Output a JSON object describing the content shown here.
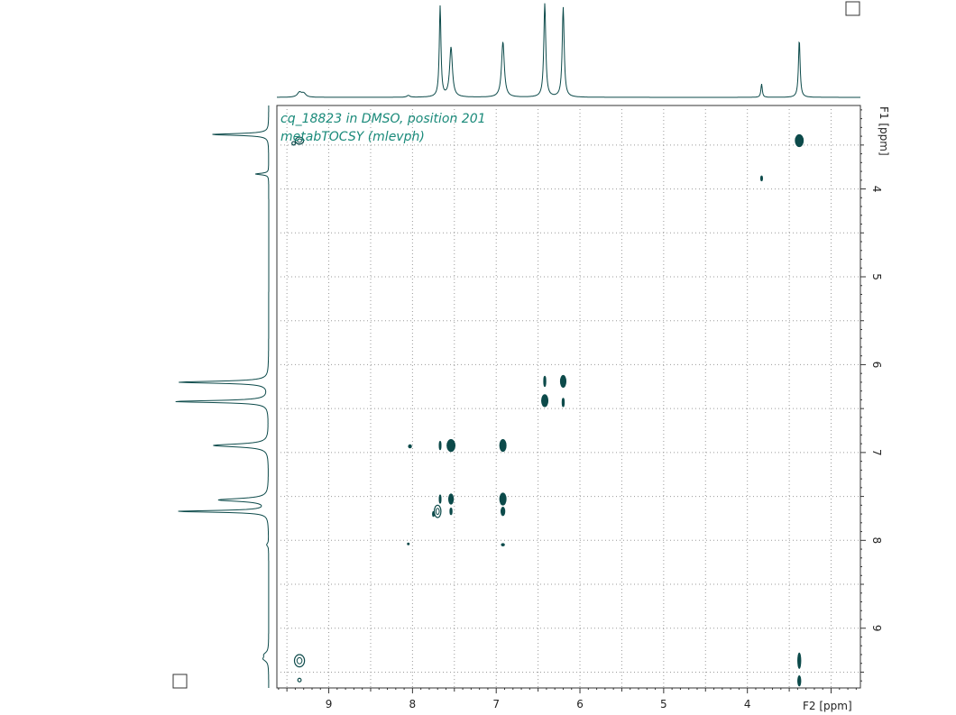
{
  "chart_data": {
    "type": "heatmap",
    "title_line1": "cq_18823 in DMSO, position 201",
    "title_line2": "metabTOCSY (mlevph)",
    "xlabel": "F2 [ppm]",
    "ylabel": "F1 [ppm]",
    "x_range": [
      9.62,
      2.65
    ],
    "y_range": [
      3.05,
      9.68
    ],
    "x_ticks": [
      9,
      8,
      7,
      6,
      5,
      4
    ],
    "y_ticks": [
      4,
      5,
      6,
      7,
      8,
      9
    ],
    "grid": true,
    "contour_color": "#0c4a4a",
    "title_color": "#1a8a7a",
    "projection_peaks": [
      {
        "ppm": 9.35,
        "height": 0.05,
        "width": 0.03
      },
      {
        "ppm": 9.3,
        "height": 0.04,
        "width": 0.03
      },
      {
        "ppm": 8.05,
        "height": 0.02,
        "width": 0.02
      },
      {
        "ppm": 7.67,
        "height": 0.95,
        "width": 0.012
      },
      {
        "ppm": 7.54,
        "height": 0.52,
        "width": 0.02
      },
      {
        "ppm": 6.92,
        "height": 0.58,
        "width": 0.02
      },
      {
        "ppm": 6.42,
        "height": 0.98,
        "width": 0.014
      },
      {
        "ppm": 6.2,
        "height": 0.94,
        "width": 0.014
      },
      {
        "ppm": 3.83,
        "height": 0.14,
        "width": 0.01
      },
      {
        "ppm": 3.38,
        "height": 0.6,
        "width": 0.012
      }
    ],
    "cross_peaks": [
      {
        "x": 9.42,
        "y": 3.48,
        "rx": 0.02,
        "ry": 0.02,
        "open": true
      },
      {
        "x": 9.35,
        "y": 3.45,
        "rx": 0.05,
        "ry": 0.04,
        "open": true
      },
      {
        "x": 3.38,
        "y": 3.45,
        "rx": 0.05,
        "ry": 0.07,
        "open": false
      },
      {
        "x": 3.83,
        "y": 3.88,
        "rx": 0.01,
        "ry": 0.03,
        "open": false
      },
      {
        "x": 6.42,
        "y": 6.19,
        "rx": 0.015,
        "ry": 0.06,
        "open": false
      },
      {
        "x": 6.2,
        "y": 6.19,
        "rx": 0.035,
        "ry": 0.07,
        "open": false
      },
      {
        "x": 6.42,
        "y": 6.41,
        "rx": 0.04,
        "ry": 0.07,
        "open": false
      },
      {
        "x": 6.2,
        "y": 6.43,
        "rx": 0.015,
        "ry": 0.05,
        "open": false
      },
      {
        "x": 8.03,
        "y": 6.93,
        "rx": 0.02,
        "ry": 0.02,
        "open": false
      },
      {
        "x": 7.67,
        "y": 6.92,
        "rx": 0.012,
        "ry": 0.05,
        "open": false
      },
      {
        "x": 7.54,
        "y": 6.92,
        "rx": 0.05,
        "ry": 0.07,
        "open": false
      },
      {
        "x": 6.92,
        "y": 6.92,
        "rx": 0.04,
        "ry": 0.07,
        "open": false
      },
      {
        "x": 7.67,
        "y": 7.53,
        "rx": 0.012,
        "ry": 0.05,
        "open": false
      },
      {
        "x": 7.54,
        "y": 7.53,
        "rx": 0.03,
        "ry": 0.06,
        "open": false
      },
      {
        "x": 6.92,
        "y": 7.53,
        "rx": 0.04,
        "ry": 0.07,
        "open": false
      },
      {
        "x": 7.7,
        "y": 7.67,
        "rx": 0.04,
        "ry": 0.07,
        "open": true
      },
      {
        "x": 7.75,
        "y": 7.7,
        "rx": 0.012,
        "ry": 0.03,
        "open": false
      },
      {
        "x": 7.54,
        "y": 7.67,
        "rx": 0.015,
        "ry": 0.04,
        "open": false
      },
      {
        "x": 6.92,
        "y": 7.67,
        "rx": 0.025,
        "ry": 0.05,
        "open": false
      },
      {
        "x": 8.05,
        "y": 8.04,
        "rx": 0.01,
        "ry": 0.01,
        "open": false
      },
      {
        "x": 6.92,
        "y": 8.05,
        "rx": 0.02,
        "ry": 0.015,
        "open": false
      },
      {
        "x": 9.35,
        "y": 9.37,
        "rx": 0.06,
        "ry": 0.07,
        "open": true
      },
      {
        "x": 9.35,
        "y": 9.59,
        "rx": 0.02,
        "ry": 0.02,
        "open": true
      },
      {
        "x": 3.38,
        "y": 9.37,
        "rx": 0.02,
        "ry": 0.09,
        "open": false
      },
      {
        "x": 3.38,
        "y": 9.6,
        "rx": 0.02,
        "ry": 0.06,
        "open": false
      }
    ]
  }
}
